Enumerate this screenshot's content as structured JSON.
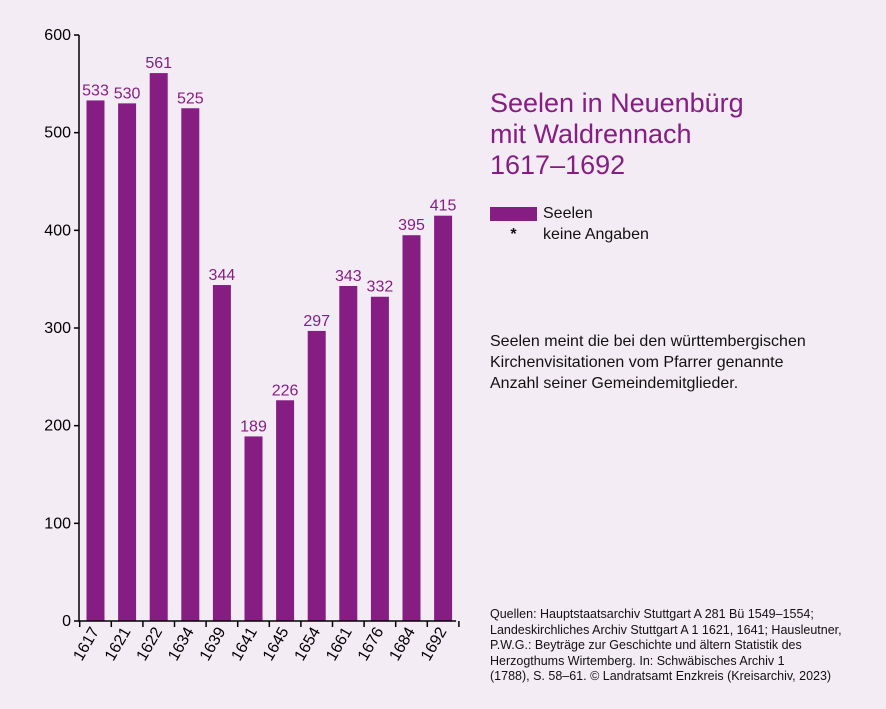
{
  "title_lines": [
    "Seelen in Neuenbürg",
    "mit Waldrennach",
    "1617–1692"
  ],
  "legend": {
    "series_label": "Seelen",
    "star_symbol": "*",
    "star_label": "keine Angaben"
  },
  "note_lines": [
    "Seelen meint die bei den württembergischen",
    "Kirchenvisitationen vom Pfarrer genannte",
    "Anzahl seiner Gemeindemitglieder."
  ],
  "source_lines": [
    "Quellen: Hauptstaatsarchiv Stuttgart A 281 Bü 1549–1554;",
    "Landeskirchliches Archiv Stuttgart A 1 1621, 1641; Hausleutner,",
    "P.W.G.: Beyträge zur Geschichte und ältern Statistik des",
    "Herzogthums Wirtemberg. In: Schwäbisches Archiv 1",
    "(1788), S. 58–61. © Landratsamt Enzkreis (Kreisarchiv, 2023)"
  ],
  "colors": {
    "bar": "#861d83",
    "label": "#861d83",
    "axis": "#000000",
    "background": "#f4ecf4"
  },
  "chart_data": {
    "type": "bar",
    "categories": [
      "1617",
      "1621",
      "1622",
      "1634",
      "1639",
      "1641",
      "1645",
      "1654",
      "1661",
      "1676",
      "1684",
      "1692"
    ],
    "series": [
      {
        "name": "Seelen",
        "values": [
          533,
          530,
          561,
          525,
          344,
          189,
          226,
          297,
          343,
          332,
          395,
          415
        ]
      }
    ],
    "ylim": [
      0,
      600
    ],
    "yticks": [
      0,
      100,
      200,
      300,
      400,
      500,
      600
    ],
    "xlabel": "",
    "ylabel": "",
    "grid": false,
    "data_labels": true,
    "legend_position": "right"
  }
}
